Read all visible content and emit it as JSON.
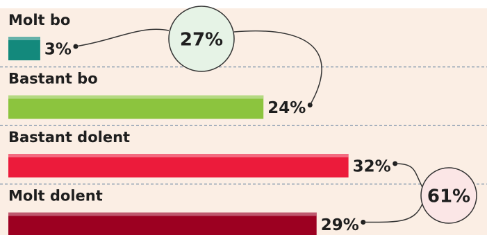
{
  "chart_data": {
    "type": "bar",
    "orientation": "horizontal",
    "categories": [
      "Molt bo",
      "Bastant bo",
      "Bastant dolent",
      "Molt dolent"
    ],
    "values": [
      3,
      24,
      32,
      29
    ],
    "value_labels": [
      "3%",
      "24%",
      "32%",
      "29%"
    ],
    "colors": [
      "#13897c",
      "#8cc43e",
      "#ec1b3b",
      "#9c0021"
    ],
    "annotations": [
      {
        "text": "27%",
        "color": "#e6f3e6"
      },
      {
        "text": "61%",
        "color": "#fbe6e6"
      }
    ]
  }
}
